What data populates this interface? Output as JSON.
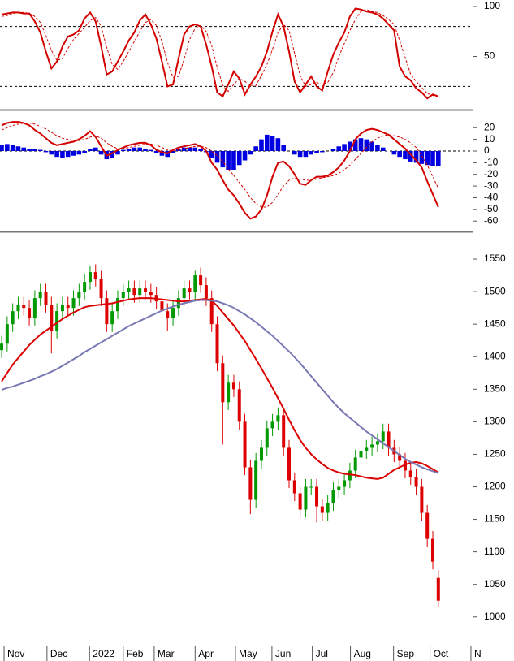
{
  "chart_data": [
    {
      "type": "line",
      "ylim": [
        -2.4,
        106.5
      ],
      "yticks": [
        50,
        100
      ],
      "levels": [
        20,
        80
      ],
      "series": [
        {
          "color": "#d40000",
          "dash": false,
          "values": [
            92,
            93,
            94,
            94,
            93,
            93,
            85,
            74,
            55,
            38,
            45,
            60,
            70,
            72,
            76,
            88,
            94,
            85,
            60,
            32,
            35,
            45,
            55,
            66,
            74,
            86,
            92,
            82,
            68,
            45,
            20,
            22,
            48,
            72,
            80,
            82,
            80,
            62,
            40,
            14,
            10,
            22,
            35,
            28,
            12,
            22,
            30,
            40,
            55,
            75,
            92,
            80,
            55,
            25,
            14,
            22,
            30,
            20,
            16,
            35,
            52,
            64,
            74,
            90,
            98,
            97,
            95,
            94,
            92,
            88,
            82,
            76,
            40,
            30,
            26,
            18,
            14,
            8,
            12,
            10
          ]
        },
        {
          "color": "#d40000",
          "dash": true,
          "values": [
            90,
            91,
            93,
            94,
            94,
            93,
            90,
            84,
            71,
            56,
            46,
            48,
            58,
            67,
            73,
            79,
            86,
            89,
            80,
            59,
            42,
            37,
            45,
            55,
            65,
            75,
            84,
            87,
            81,
            65,
            44,
            29,
            30,
            47,
            67,
            78,
            81,
            75,
            61,
            39,
            21,
            15,
            22,
            28,
            25,
            21,
            21,
            31,
            42,
            57,
            74,
            82,
            76,
            53,
            31,
            20,
            22,
            24,
            22,
            24,
            34,
            50,
            63,
            76,
            87,
            95,
            97,
            95,
            94,
            91,
            87,
            82,
            66,
            49,
            32,
            25,
            19,
            13,
            11,
            10
          ]
        }
      ]
    },
    {
      "type": "combo",
      "ylim": [
        -67.5,
        33.4
      ],
      "yticks": [
        20,
        10,
        0,
        -10,
        -20,
        -30,
        -40,
        -50,
        -60
      ],
      "levels": [
        0
      ],
      "bars": {
        "color": "#0000e0",
        "values": [
          5,
          6,
          5,
          4,
          3,
          2,
          2,
          1,
          -1,
          -3,
          -5,
          -6,
          -5,
          -4,
          -3,
          -2,
          2,
          3,
          -3,
          -7,
          -6,
          -3,
          1,
          2,
          3,
          3,
          2,
          1,
          -2,
          -4,
          -5,
          -2,
          2,
          3,
          3,
          3,
          2,
          -1,
          -6,
          -10,
          -14,
          -16,
          -16,
          -12,
          -8,
          -3,
          4,
          10,
          14,
          13,
          11,
          5,
          0,
          -3,
          -5,
          -5,
          -3,
          -2,
          -1,
          0,
          2,
          4,
          6,
          8,
          10,
          11,
          10,
          8,
          5,
          3,
          0,
          -3,
          -5,
          -7,
          -9,
          -10,
          -11,
          -12,
          -13,
          -13
        ]
      },
      "series": [
        {
          "color": "#d40000",
          "dash": false,
          "values": [
            22,
            24,
            25,
            25,
            24,
            22,
            18,
            15,
            11,
            7,
            5,
            6,
            7,
            8,
            10,
            13,
            17,
            12,
            4,
            -4,
            -2,
            1,
            3,
            5,
            6,
            7,
            7,
            5,
            1,
            -1,
            -2,
            1,
            3,
            4,
            5,
            6,
            4,
            0,
            -10,
            -16,
            -25,
            -33,
            -38,
            -45,
            -53,
            -58,
            -56,
            -50,
            -38,
            -22,
            -10,
            -9,
            -13,
            -20,
            -28,
            -29,
            -25,
            -22,
            -22,
            -21,
            -18,
            -14,
            -8,
            0,
            10,
            15,
            18,
            19,
            18,
            16,
            14,
            10,
            6,
            2,
            -3,
            -8,
            -14,
            -26,
            -37,
            -48
          ]
        },
        {
          "color": "#d40000",
          "dash": true,
          "values": [
            18,
            20,
            22,
            23,
            24,
            24,
            23,
            21,
            19,
            16,
            13,
            11,
            10,
            9,
            9,
            10,
            12,
            13,
            11,
            7,
            4,
            2,
            2,
            3,
            4,
            5,
            6,
            6,
            5,
            3,
            1,
            0,
            1,
            2,
            3,
            4,
            4,
            3,
            0,
            -4,
            -9,
            -15,
            -21,
            -27,
            -33,
            -40,
            -45,
            -48,
            -48,
            -44,
            -37,
            -30,
            -25,
            -23,
            -24,
            -25,
            -25,
            -24,
            -23,
            -22,
            -21,
            -19,
            -16,
            -12,
            -7,
            -2,
            3,
            8,
            11,
            13,
            14,
            13,
            12,
            10,
            7,
            3,
            -4,
            -12,
            -22,
            -32
          ]
        }
      ]
    },
    {
      "type": "candlestick",
      "xlim": [
        -0.3,
        85.2
      ],
      "xticks": [
        {
          "value": 0.44,
          "label": "Nov"
        },
        {
          "value": 8.2,
          "label": "Dec"
        },
        {
          "value": 15.9,
          "label": "2022"
        },
        {
          "value": 22,
          "label": "Feb"
        },
        {
          "value": 27.6,
          "label": "Mar"
        },
        {
          "value": 35,
          "label": "Apr"
        },
        {
          "value": 42.3,
          "label": "May"
        },
        {
          "value": 48.9,
          "label": "Jun"
        },
        {
          "value": 56.2,
          "label": "Jul"
        },
        {
          "value": 63.1,
          "label": "Aug"
        },
        {
          "value": 70.9,
          "label": "Sep"
        },
        {
          "value": 77.5,
          "label": "Oct"
        },
        {
          "value": 84.9,
          "label": "N"
        }
      ],
      "ylim": [
        956,
        1590
      ],
      "yticks": [
        1000,
        1050,
        1100,
        1150,
        1200,
        1250,
        1300,
        1350,
        1400,
        1450,
        1500,
        1550
      ],
      "up_color": "#009900",
      "down_color": "#dd0000",
      "open": [
        1410,
        1420,
        1450,
        1470,
        1480,
        1475,
        1460,
        1490,
        1500,
        1480,
        1440,
        1470,
        1480,
        1475,
        1490,
        1500,
        1515,
        1530,
        1520,
        1490,
        1450,
        1470,
        1490,
        1500,
        1505,
        1495,
        1505,
        1500,
        1495,
        1485,
        1470,
        1460,
        1475,
        1490,
        1505,
        1500,
        1525,
        1510,
        1490,
        1450,
        1390,
        1330,
        1360,
        1350,
        1300,
        1230,
        1180,
        1240,
        1260,
        1290,
        1300,
        1310,
        1260,
        1210,
        1190,
        1165,
        1200,
        1200,
        1170,
        1160,
        1175,
        1195,
        1200,
        1210,
        1225,
        1245,
        1255,
        1260,
        1265,
        1270,
        1285,
        1260,
        1250,
        1240,
        1225,
        1215,
        1200,
        1160,
        1120,
        1060
      ],
      "high": [
        1432,
        1462,
        1482,
        1492,
        1492,
        1487,
        1502,
        1512,
        1512,
        1492,
        1482,
        1492,
        1492,
        1502,
        1512,
        1527,
        1540,
        1542,
        1532,
        1502,
        1482,
        1502,
        1512,
        1517,
        1517,
        1517,
        1517,
        1512,
        1507,
        1497,
        1482,
        1487,
        1502,
        1517,
        1517,
        1532,
        1537,
        1522,
        1502,
        1462,
        1402,
        1372,
        1372,
        1362,
        1312,
        1242,
        1252,
        1272,
        1302,
        1312,
        1322,
        1322,
        1272,
        1222,
        1202,
        1212,
        1212,
        1212,
        1182,
        1187,
        1207,
        1212,
        1222,
        1237,
        1257,
        1267,
        1272,
        1277,
        1282,
        1297,
        1297,
        1272,
        1262,
        1252,
        1237,
        1227,
        1212,
        1172,
        1132,
        1072
      ],
      "low": [
        1398,
        1408,
        1438,
        1458,
        1463,
        1448,
        1448,
        1478,
        1468,
        1405,
        1428,
        1458,
        1463,
        1463,
        1478,
        1488,
        1503,
        1508,
        1478,
        1438,
        1438,
        1458,
        1478,
        1488,
        1483,
        1483,
        1488,
        1483,
        1473,
        1458,
        1440,
        1448,
        1463,
        1478,
        1488,
        1488,
        1498,
        1478,
        1438,
        1378,
        1265,
        1318,
        1338,
        1288,
        1218,
        1158,
        1168,
        1228,
        1248,
        1278,
        1288,
        1248,
        1198,
        1178,
        1153,
        1153,
        1188,
        1145,
        1148,
        1148,
        1163,
        1183,
        1188,
        1198,
        1213,
        1233,
        1243,
        1248,
        1253,
        1258,
        1248,
        1238,
        1228,
        1213,
        1203,
        1188,
        1148,
        1108,
        1073,
        1015
      ],
      "close": [
        1420,
        1450,
        1470,
        1480,
        1475,
        1460,
        1490,
        1500,
        1480,
        1440,
        1470,
        1480,
        1475,
        1490,
        1500,
        1515,
        1530,
        1520,
        1490,
        1450,
        1470,
        1490,
        1500,
        1505,
        1495,
        1505,
        1500,
        1495,
        1485,
        1470,
        1460,
        1475,
        1490,
        1505,
        1500,
        1525,
        1510,
        1490,
        1450,
        1390,
        1330,
        1360,
        1350,
        1300,
        1230,
        1180,
        1240,
        1260,
        1290,
        1300,
        1310,
        1260,
        1210,
        1190,
        1165,
        1200,
        1200,
        1170,
        1160,
        1175,
        1195,
        1200,
        1210,
        1225,
        1245,
        1255,
        1260,
        1265,
        1270,
        1285,
        1260,
        1250,
        1240,
        1225,
        1215,
        1200,
        1160,
        1120,
        1085,
        1025
      ],
      "series": [
        {
          "color": "#dd0000",
          "values": [
            1362,
            1375,
            1388,
            1398,
            1408,
            1418,
            1426,
            1434,
            1440,
            1446,
            1452,
            1458,
            1463,
            1468,
            1472,
            1476,
            1478,
            1479,
            1480,
            1481,
            1482,
            1484,
            1486,
            1488,
            1489,
            1490,
            1490,
            1490,
            1489,
            1488,
            1487,
            1486,
            1485,
            1485,
            1486,
            1487,
            1488,
            1489,
            1486,
            1478,
            1468,
            1458,
            1448,
            1436,
            1424,
            1410,
            1396,
            1382,
            1367,
            1352,
            1336,
            1320,
            1303,
            1287,
            1272,
            1260,
            1250,
            1242,
            1235,
            1229,
            1225,
            1222,
            1220,
            1219,
            1218,
            1216,
            1214,
            1213,
            1212,
            1214,
            1220,
            1226,
            1230,
            1234,
            1237,
            1238,
            1236,
            1232,
            1227,
            1222
          ]
        },
        {
          "color": "#7878b4",
          "values": [
            1349,
            1352,
            1354,
            1357,
            1360,
            1363,
            1366,
            1370,
            1373,
            1377,
            1381,
            1386,
            1391,
            1396,
            1401,
            1407,
            1412,
            1417,
            1422,
            1427,
            1432,
            1437,
            1442,
            1447,
            1451,
            1455,
            1459,
            1463,
            1467,
            1471,
            1474,
            1477,
            1480,
            1482,
            1484,
            1486,
            1487,
            1487,
            1486,
            1485,
            1482,
            1479,
            1475,
            1470,
            1465,
            1459,
            1453,
            1446,
            1439,
            1432,
            1424,
            1416,
            1408,
            1399,
            1390,
            1380,
            1370,
            1360,
            1350,
            1340,
            1330,
            1321,
            1313,
            1306,
            1299,
            1292,
            1285,
            1279,
            1273,
            1267,
            1261,
            1255,
            1249,
            1243,
            1238,
            1234,
            1230,
            1227,
            1224,
            1221
          ]
        }
      ]
    }
  ]
}
